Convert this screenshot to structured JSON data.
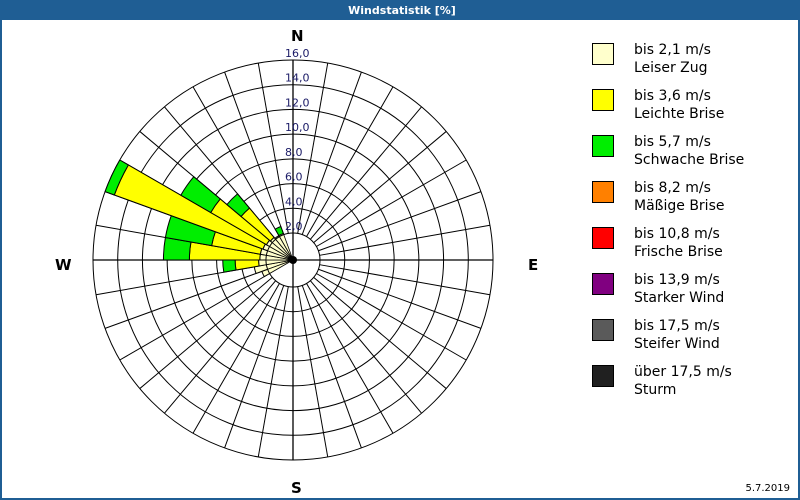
{
  "window": {
    "title": "Windstatistik [%]"
  },
  "directions": {
    "n": "N",
    "e": "E",
    "s": "S",
    "w": "W"
  },
  "footer": {
    "date": "5.7.2019"
  },
  "chart_data": {
    "type": "windrose",
    "title": "Windstatistik [%]",
    "unit": "%",
    "radial_ticks": [
      "2,0",
      "4,0",
      "6,0",
      "8,0",
      "10,0",
      "12,0",
      "14,0",
      "16,0"
    ],
    "radial_range": [
      2,
      16
    ],
    "sector_width_deg": 10,
    "direction_labels": [
      "N",
      "E",
      "S",
      "W"
    ],
    "legend_position": "right",
    "legend": [
      {
        "speed": "bis 2,1 m/s",
        "name": "Leiser Zug",
        "color": "#ffffcc"
      },
      {
        "speed": "bis 3,6 m/s",
        "name": "Leichte Brise",
        "color": "#ffff00"
      },
      {
        "speed": "bis 5,7 m/s",
        "name": "Schwache Brise",
        "color": "#00ee00"
      },
      {
        "speed": "bis 8,2 m/s",
        "name": "Mäßige Brise",
        "color": "#ff8000"
      },
      {
        "speed": "bis 10,8 m/s",
        "name": "Frische Brise",
        "color": "#ff0000"
      },
      {
        "speed": "bis 13,9 m/s",
        "name": "Starker Wind",
        "color": "#800080"
      },
      {
        "speed": "bis 17,5 m/s",
        "name": "Steifer Wind",
        "color": "#5a5a5a"
      },
      {
        "speed": "über 17,5 m/s",
        "name": "Sturm",
        "color": "#202020"
      }
    ],
    "sectors": [
      {
        "from": 240,
        "to": 250,
        "cumulative": [
          2.5,
          2.5,
          2.5
        ]
      },
      {
        "from": 250,
        "to": 260,
        "cumulative": [
          3.0,
          3.0,
          3.0
        ]
      },
      {
        "from": 260,
        "to": 270,
        "cumulative": [
          2.6,
          4.5,
          5.5
        ]
      },
      {
        "from": 270,
        "to": 280,
        "cumulative": [
          2.5,
          8.2,
          10.3
        ]
      },
      {
        "from": 280,
        "to": 290,
        "cumulative": [
          2.5,
          6.5,
          10.3
        ]
      },
      {
        "from": 290,
        "to": 300,
        "cumulative": [
          2.4,
          15.2,
          16.0
        ]
      },
      {
        "from": 300,
        "to": 310,
        "cumulative": [
          2.3,
          7.5,
          10.3
        ]
      },
      {
        "from": 310,
        "to": 320,
        "cumulative": [
          2.2,
          5.3,
          6.8
        ]
      },
      {
        "from": 320,
        "to": 330,
        "cumulative": [
          2.1,
          2.1,
          2.1
        ]
      },
      {
        "from": 330,
        "to": 340,
        "cumulative": [
          2.1,
          2.1,
          2.7
        ]
      }
    ]
  }
}
